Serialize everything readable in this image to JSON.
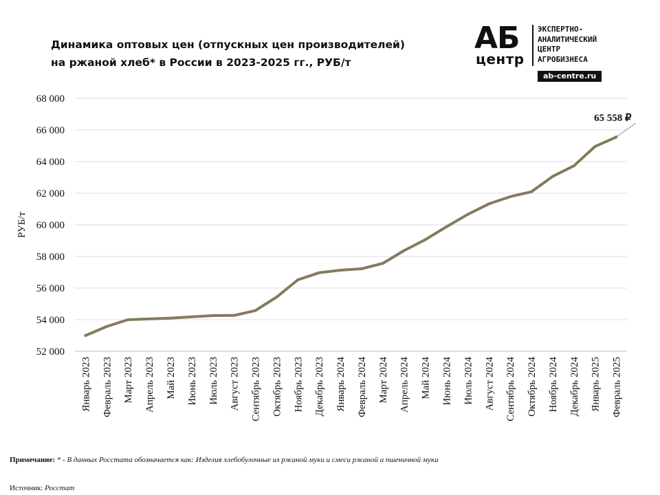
{
  "chart_data": {
    "type": "line",
    "title": "Динамика оптовых цен (отпускных цен производителей)",
    "subtitle": "на ржаной хлеб* в России в 2023-2025 гг., РУБ/т",
    "xlabel": "",
    "ylabel": "РУБ/т",
    "ylim": [
      52000,
      68000
    ],
    "yticks": [
      52000,
      54000,
      56000,
      58000,
      60000,
      62000,
      64000,
      66000,
      68000
    ],
    "ytick_labels": [
      "52 000",
      "54 000",
      "56 000",
      "58 000",
      "60 000",
      "62 000",
      "64 000",
      "66 000",
      "68 000"
    ],
    "grid": true,
    "legend": "none",
    "line_color": "#857a5c",
    "categories": [
      "Январь 2023",
      "Февраль 2023",
      "Март 2023",
      "Апрель 2023",
      "Май 2023",
      "Июнь 2023",
      "Июль 2023",
      "Август 2023",
      "Сентябрь 2023",
      "Октябрь 2023",
      "Ноябрь 2023",
      "Декабрь 2023",
      "Январь 2024",
      "Февраль 2024",
      "Март 2024",
      "Апрель 2024",
      "Май 2024",
      "Июнь 2024",
      "Июль 2024",
      "Август 2024",
      "Сентябрь 2024",
      "Октябрь 2024",
      "Ноябрь 2024",
      "Декабрь 2024",
      "Январь 2025",
      "Февраль 2025"
    ],
    "series": [
      {
        "values": [
          53000,
          53570,
          54000,
          54050,
          54100,
          54180,
          54260,
          54270,
          54580,
          55430,
          56520,
          56970,
          57130,
          57220,
          57560,
          58370,
          59060,
          59880,
          60660,
          61330,
          61780,
          62090,
          63060,
          63730,
          64960,
          65558
        ]
      }
    ],
    "annotations": [
      {
        "label": "65 558 ₽",
        "category": "Февраль 2025",
        "value": 65558
      }
    ]
  },
  "logo": {
    "mark": "АБ",
    "sub": "центр",
    "lines": [
      "ЭКСПЕРТНО-",
      "АНАЛИТИЧЕСКИЙ",
      "ЦЕНТР",
      "АГРОБИЗНЕСА"
    ],
    "url": "ab-centre.ru"
  },
  "note": {
    "label": "Примечание:",
    "text": "* - В данных Росстата обозначается как: Изделия хлебобулочные из ржаной муки и смеси ржаной и пшеничной муки"
  },
  "source": {
    "label": "Источник:",
    "text": "Росстат"
  }
}
